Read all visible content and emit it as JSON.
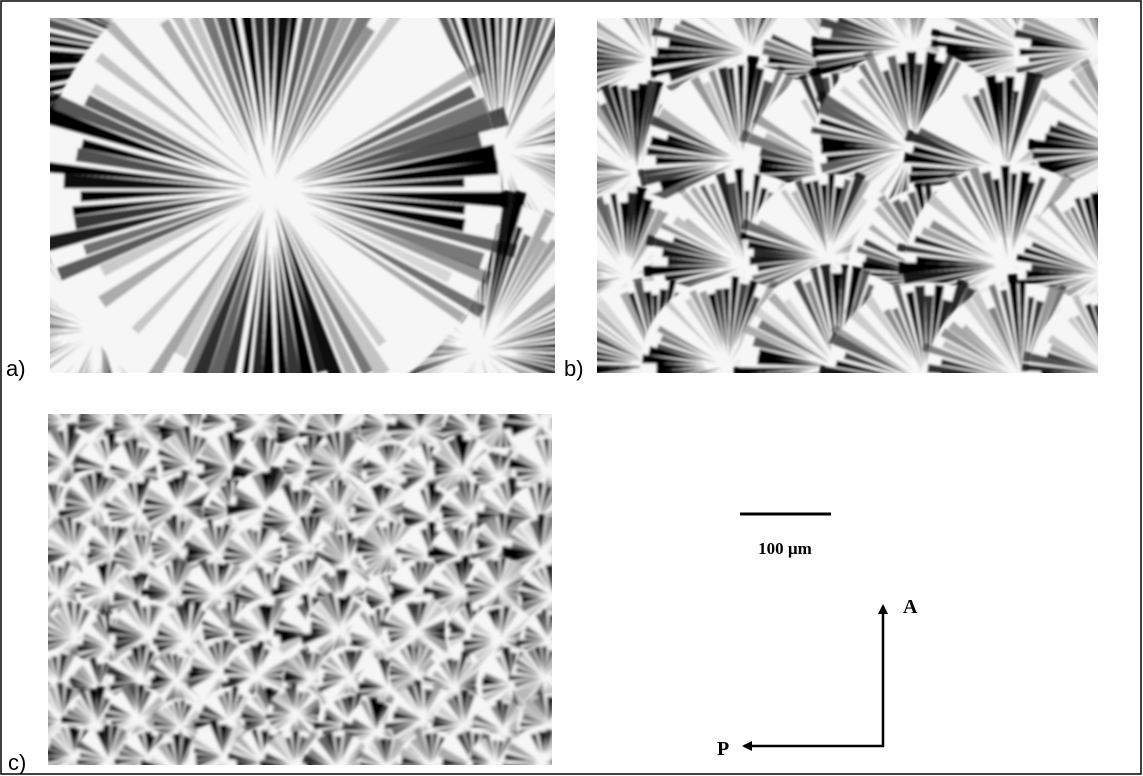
{
  "panels": [
    {
      "label": "a)"
    },
    {
      "label": "b)"
    },
    {
      "label": "c)"
    }
  ],
  "scale_bar": {
    "label": "100 µm"
  },
  "polarizers": {
    "analyzer": "A",
    "polarizer": "P"
  }
}
